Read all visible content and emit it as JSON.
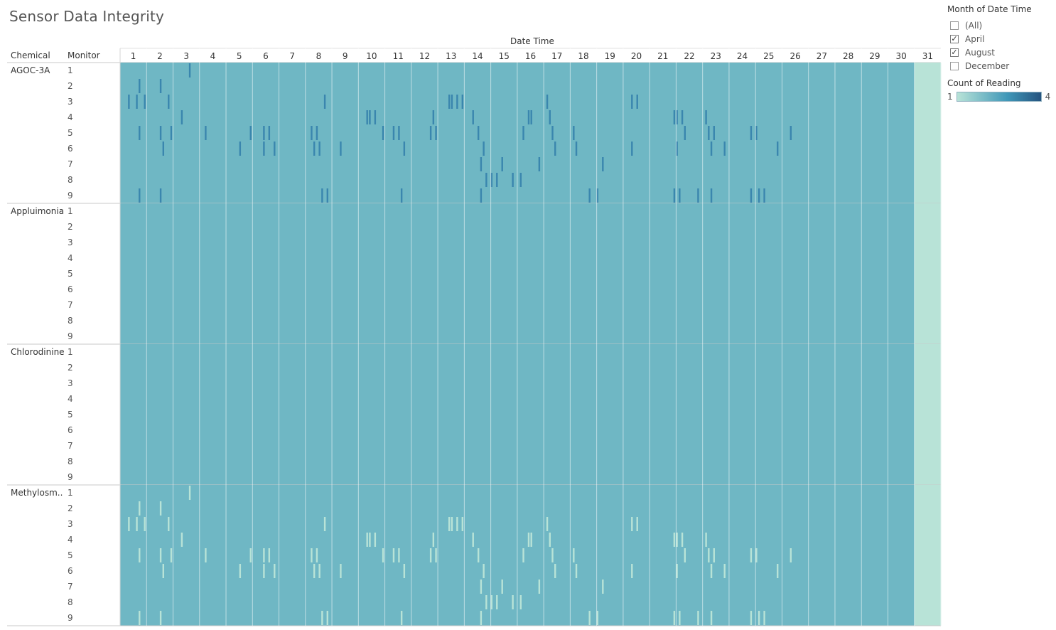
{
  "title": "Sensor Data Integrity",
  "filter": {
    "title": "Month of Date Time",
    "options": [
      {
        "label": "(All)",
        "checked": false
      },
      {
        "label": "April",
        "checked": true
      },
      {
        "label": "August",
        "checked": true
      },
      {
        "label": "December",
        "checked": false
      }
    ]
  },
  "legend": {
    "title": "Count of Reading",
    "min": "1",
    "max": "4",
    "colors": [
      "#b8e3d7",
      "#3f97b8",
      "#25537f"
    ]
  },
  "chart_data": {
    "type": "heatmap",
    "xlabel": "Date Time",
    "row_header_chemical": "Chemical",
    "row_header_monitor": "Monitor",
    "days": [
      "1",
      "2",
      "3",
      "4",
      "5",
      "6",
      "7",
      "8",
      "9",
      "10",
      "11",
      "12",
      "13",
      "14",
      "15",
      "16",
      "17",
      "18",
      "19",
      "20",
      "21",
      "22",
      "23",
      "24",
      "25",
      "26",
      "27",
      "28",
      "29",
      "30",
      "31"
    ],
    "chemicals": [
      "AGOC-3A",
      "Appluimonia",
      "Chlorodinine",
      "Methylosm.."
    ],
    "monitors": [
      "1",
      "2",
      "3",
      "4",
      "5",
      "6",
      "7",
      "8",
      "9"
    ],
    "base_value": 2,
    "day31_value": 1,
    "colors": {
      "base": "#6fb7c4",
      "day31": "#b8e3d7",
      "high": "#3a86ae",
      "low": "#b8e3d7"
    },
    "anomalies": {
      "1": [
        2.6
      ],
      "2": [
        0.7,
        1.5
      ],
      "3": [
        0.3,
        0.6,
        0.9,
        1.8,
        7.7,
        12.4,
        12.5,
        12.7,
        12.9,
        16.1,
        19.3,
        19.5
      ],
      "4": [
        2.3,
        9.3,
        9.4,
        9.6,
        11.8,
        13.3,
        15.4,
        15.5,
        16.2,
        20.9,
        21.0,
        21.2,
        22.1
      ],
      "5": [
        0.7,
        1.5,
        1.9,
        3.2,
        4.9,
        5.4,
        5.6,
        7.2,
        7.4,
        9.9,
        10.3,
        10.5,
        11.7,
        11.9,
        13.5,
        15.2,
        16.3,
        17.1,
        21.3,
        22.2,
        22.4,
        23.8,
        24.0,
        25.3
      ],
      "6": [
        1.6,
        4.5,
        5.4,
        5.8,
        7.3,
        7.5,
        8.3,
        10.7,
        13.7,
        16.4,
        17.2,
        19.3,
        21.0,
        22.3,
        22.8,
        24.8
      ],
      "7": [
        13.6,
        14.4,
        15.8,
        18.2
      ],
      "8": [
        13.8,
        14.0,
        14.2,
        14.8,
        15.1
      ],
      "9": [
        0.7,
        1.5,
        7.6,
        7.8,
        10.6,
        13.6,
        17.7,
        18.0,
        20.9,
        21.1,
        21.8,
        22.3,
        23.8,
        24.1,
        24.3
      ]
    }
  }
}
